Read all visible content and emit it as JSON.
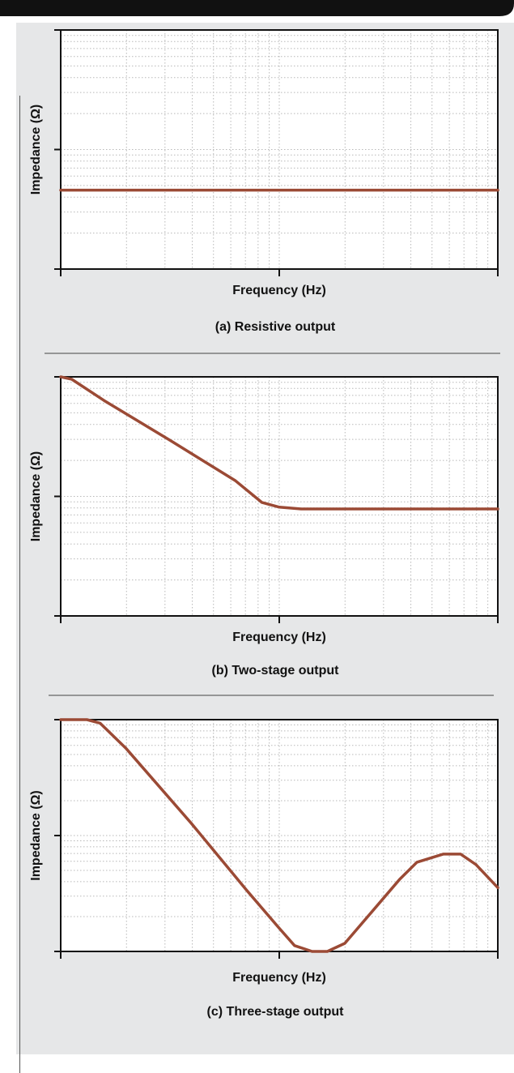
{
  "colors": {
    "curve": "#9b4a35",
    "panel_bg": "#e6e7e8",
    "frame": "#111111",
    "grid": "#b8b8b8",
    "header": "#111111"
  },
  "chart_data": [
    {
      "type": "line",
      "title": "",
      "caption": "(a) Resistive output",
      "xlabel": "Frequency (Hz)",
      "ylabel": "Impedance (Ω)",
      "xscale": "log",
      "yscale": "log",
      "xlim": [
        0,
        2
      ],
      "ylim": [
        0,
        2
      ],
      "grid": true,
      "series": [
        {
          "x": [
            0,
            2
          ],
          "y": [
            0.66,
            0.66
          ]
        }
      ]
    },
    {
      "type": "line",
      "title": "",
      "caption": "(b) Two-stage output",
      "xlabel": "Frequency (Hz)",
      "ylabel": "Impedance (Ω)",
      "xscale": "log",
      "yscale": "log",
      "xlim": [
        0,
        2
      ],
      "ylim": [
        0,
        2
      ],
      "grid": true,
      "series": [
        {
          "x": [
            0,
            0.05,
            0.2,
            0.5,
            0.8,
            0.92,
            1.0,
            1.1,
            1.5,
            2.0
          ],
          "y": [
            2.0,
            1.98,
            1.8,
            1.47,
            1.13,
            0.95,
            0.91,
            0.895,
            0.895,
            0.895
          ]
        }
      ]
    },
    {
      "type": "line",
      "title": "",
      "caption": "(c) Three-stage output",
      "xlabel": "Frequency (Hz)",
      "ylabel": "Impedance (Ω)",
      "xscale": "log",
      "yscale": "log",
      "xlim": [
        0,
        2
      ],
      "ylim": [
        0,
        2
      ],
      "grid": true,
      "series": [
        {
          "x": [
            0,
            0.12,
            0.18,
            0.3,
            0.6,
            0.85,
            1.0,
            1.07,
            1.15,
            1.22,
            1.3,
            1.45,
            1.55,
            1.63,
            1.75,
            1.83,
            1.9,
            2.0
          ],
          "y": [
            2.0,
            2.0,
            1.97,
            1.75,
            1.1,
            0.53,
            0.2,
            0.05,
            0.0,
            0.0,
            0.07,
            0.4,
            0.62,
            0.77,
            0.84,
            0.84,
            0.75,
            0.55
          ]
        }
      ]
    }
  ]
}
